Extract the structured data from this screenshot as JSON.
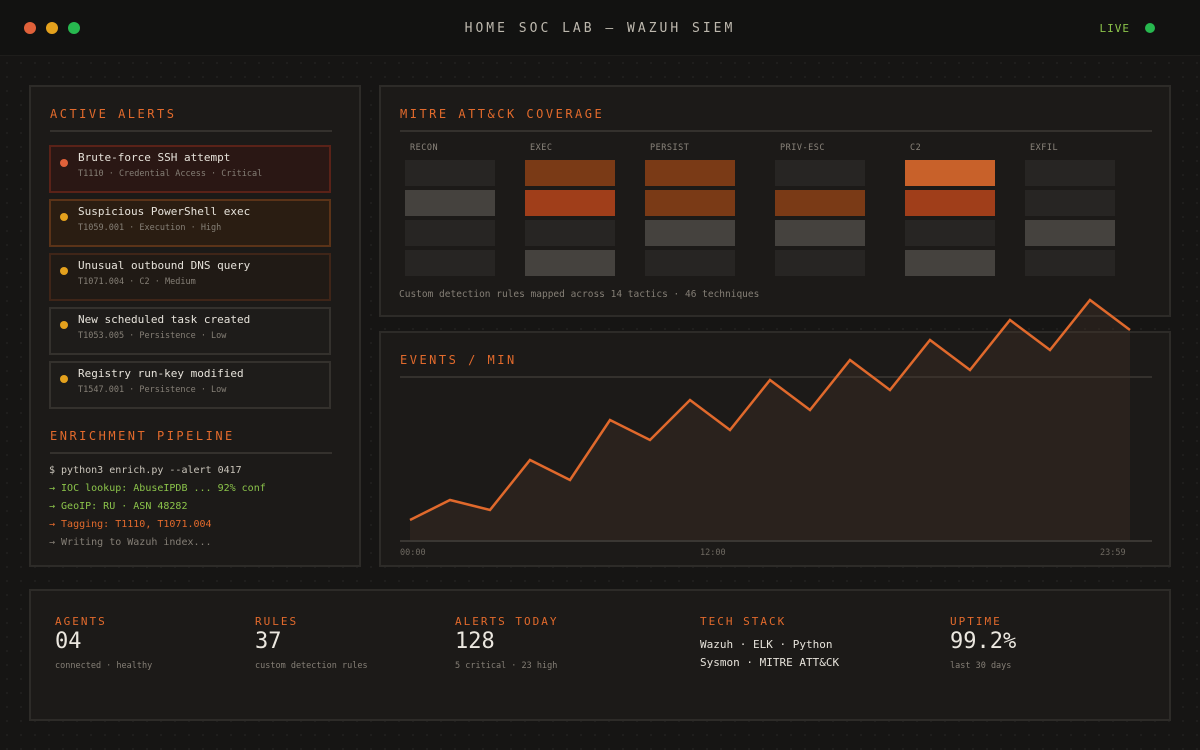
{
  "window": {
    "title": "HOME SOC LAB — WAZUH SIEM",
    "status": "LIVE",
    "colors": {
      "accent": "#e26a2c",
      "live": "#27b84f"
    }
  },
  "alerts_panel": {
    "title": "ACTIVE ALERTS",
    "alerts": [
      {
        "title": "Brute-force SSH attempt",
        "meta": "T1110 · Credential Access · Critical",
        "severity": "critical"
      },
      {
        "title": "Suspicious PowerShell exec",
        "meta": "T1059.001 · Execution · High",
        "severity": "high"
      },
      {
        "title": "Unusual outbound DNS query",
        "meta": "T1071.004 · C2 · Medium",
        "severity": "medium"
      },
      {
        "title": "New scheduled task created",
        "meta": "T1053.005 · Persistence · Low",
        "severity": "low"
      },
      {
        "title": "Registry run-key modified",
        "meta": "T1547.001 · Persistence · Low",
        "severity": "low"
      }
    ]
  },
  "pipeline": {
    "title": "ENRICHMENT PIPELINE",
    "lines": [
      {
        "text": "$ python3 enrich.py --alert 0417",
        "color": "#c9c4ba"
      },
      {
        "text": "→ IOC lookup: AbuseIPDB ... 92% conf",
        "color": "#8bc34a"
      },
      {
        "text": "→ GeoIP: RU · ASN 48282",
        "color": "#8bc34a"
      },
      {
        "text": "→ Tagging: T1110, T1071.004",
        "color": "#e26a2c"
      },
      {
        "text": "→ Writing to Wazuh index...",
        "color": "#857f76"
      }
    ]
  },
  "mitre": {
    "title": "MITRE ATT&CK COVERAGE",
    "tactics": [
      {
        "label": "RECON",
        "cells": [
          "#272523",
          "#45423e",
          "#272523",
          "#272523"
        ]
      },
      {
        "label": "EXEC",
        "cells": [
          "#7a3a16",
          "#a03e1a",
          "#272523",
          "#45423e"
        ]
      },
      {
        "label": "PERSIST",
        "cells": [
          "#7a3a16",
          "#7a3a16",
          "#45423e",
          "#272523"
        ]
      },
      {
        "label": "PRIV-ESC",
        "cells": [
          "#272523",
          "#7a3a16",
          "#45423e",
          "#272523"
        ]
      },
      {
        "label": "C2",
        "cells": [
          "#c8612a",
          "#a03e1a",
          "#272523",
          "#45423e"
        ]
      },
      {
        "label": "EXFIL",
        "cells": [
          "#272523",
          "#272523",
          "#45423e",
          "#272523"
        ]
      }
    ],
    "footer": "Custom detection rules mapped across 14 tactics · 46 techniques"
  },
  "events": {
    "title": "EVENTS / MIN",
    "x_labels": [
      "00:00",
      "12:00",
      "23:59"
    ],
    "chart_data": {
      "type": "area",
      "color": "#e0692c",
      "values": [
        2,
        4,
        3,
        8,
        6,
        12,
        10,
        14,
        11,
        16,
        13,
        18,
        15,
        20,
        17,
        22,
        19,
        24,
        21
      ]
    }
  },
  "stats": {
    "agents": {
      "label": "AGENTS",
      "value": "04",
      "sub": "connected · healthy"
    },
    "rules": {
      "label": "RULES",
      "value": "37",
      "sub": "custom detection rules"
    },
    "alerts_today": {
      "label": "ALERTS TODAY",
      "value": "128",
      "sub": "5 critical · 23 high"
    },
    "tech_stack": {
      "label": "TECH STACK",
      "line1": "Wazuh · ELK · Python",
      "line2": "Sysmon · MITRE ATT&CK"
    },
    "uptime": {
      "label": "UPTIME",
      "value": "99.2%",
      "sub": "last 30 days"
    }
  }
}
